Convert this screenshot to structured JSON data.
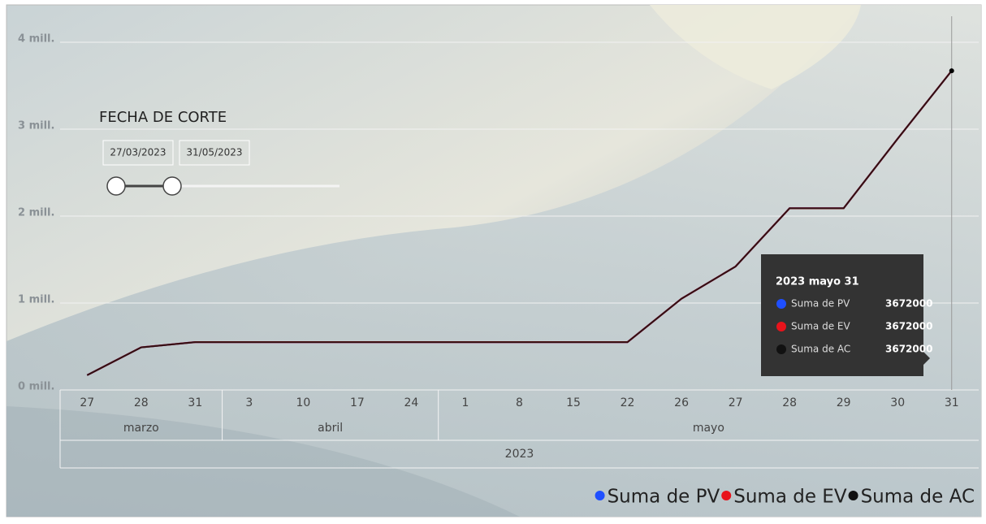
{
  "chart_data": {
    "type": "line",
    "categories": [
      "27",
      "28",
      "31",
      "3",
      "10",
      "17",
      "24",
      "1",
      "8",
      "15",
      "22",
      "26",
      "27",
      "28",
      "29",
      "30",
      "31"
    ],
    "x_months": [
      "marzo",
      "marzo",
      "marzo",
      "abril",
      "abril",
      "abril",
      "abril",
      "mayo",
      "mayo",
      "mayo",
      "mayo",
      "mayo",
      "mayo",
      "mayo",
      "mayo",
      "mayo",
      "mayo"
    ],
    "x_years": [
      "2023",
      "2023",
      "2023",
      "2023",
      "2023",
      "2023",
      "2023",
      "2023",
      "2023",
      "2023",
      "2023",
      "2023",
      "2023",
      "2023",
      "2023",
      "2023",
      "2023"
    ],
    "series": [
      {
        "name": "Suma de PV",
        "color": "#1f4fff",
        "values": [
          170000,
          490000,
          550000,
          550000,
          550000,
          550000,
          550000,
          550000,
          550000,
          550000,
          550000,
          1050000,
          1420000,
          2090000,
          2090000,
          2890000,
          3672000
        ]
      },
      {
        "name": "Suma de EV",
        "color": "#e8131b",
        "values": [
          170000,
          490000,
          550000,
          550000,
          550000,
          550000,
          550000,
          550000,
          550000,
          550000,
          550000,
          1050000,
          1420000,
          2090000,
          2090000,
          2890000,
          3672000
        ]
      },
      {
        "name": "Suma de AC",
        "color": "#111111",
        "values": [
          170000,
          490000,
          550000,
          550000,
          550000,
          550000,
          550000,
          550000,
          550000,
          550000,
          550000,
          1050000,
          1420000,
          2090000,
          2090000,
          2890000,
          3672000
        ]
      }
    ],
    "ylim": [
      0,
      4000000
    ],
    "yticks": [
      {
        "value": 0,
        "label": "0 mill."
      },
      {
        "value": 1000000,
        "label": "1 mill."
      },
      {
        "value": 2000000,
        "label": "2 mill."
      },
      {
        "value": 3000000,
        "label": "3 mill."
      },
      {
        "value": 4000000,
        "label": "4 mill."
      }
    ],
    "grid": true,
    "legend": "bottom-right",
    "tooltip": {
      "title": "2023 mayo 31"
    }
  },
  "slicer": {
    "title": "FECHA DE CORTE",
    "start": "27/03/2023",
    "end": "31/05/2023"
  }
}
